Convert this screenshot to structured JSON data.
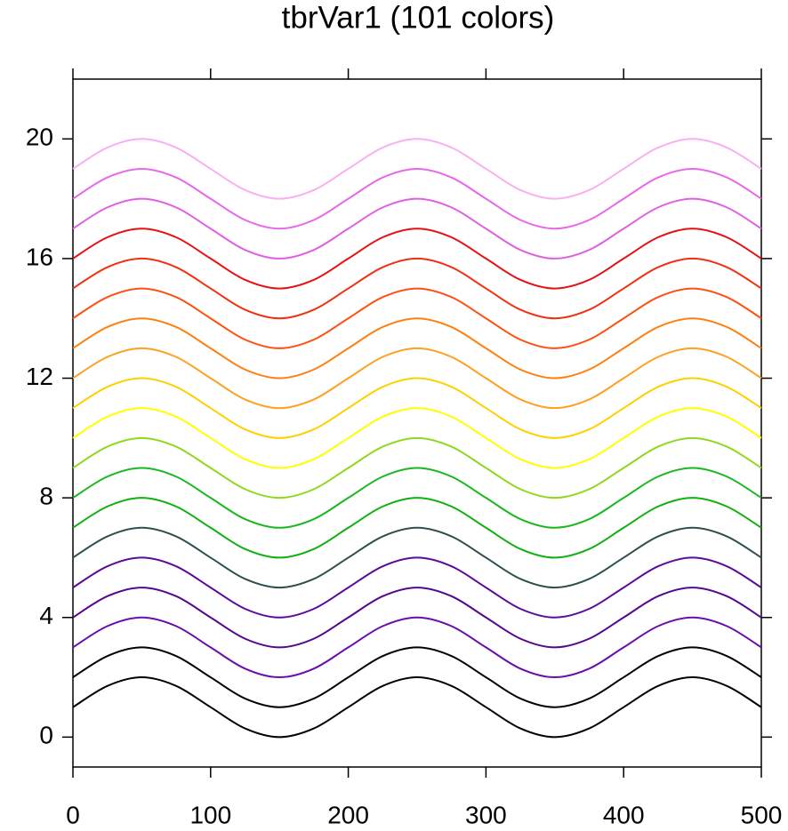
{
  "chart_data": {
    "type": "line",
    "title": "tbrVar1 (101 colors)",
    "x": [
      0,
      25,
      50,
      75,
      100,
      125,
      150,
      175,
      200,
      225,
      250,
      275,
      300,
      325,
      350,
      375,
      400,
      425,
      450,
      475,
      500
    ],
    "series": [
      {
        "color": "#000000",
        "values": [
          1,
          1.71,
          2,
          1.71,
          1,
          0.29,
          0,
          0.29,
          1,
          1.71,
          2,
          1.71,
          1,
          0.29,
          0,
          0.29,
          1,
          1.71,
          2,
          1.71,
          1
        ]
      },
      {
        "color": "#000000",
        "values": [
          2,
          2.71,
          3,
          2.71,
          2,
          1.29,
          1,
          1.29,
          2,
          2.71,
          3,
          2.71,
          2,
          1.29,
          1,
          1.29,
          2,
          2.71,
          3,
          2.71,
          2
        ]
      },
      {
        "color": "#6a0dad",
        "values": [
          3,
          3.71,
          4,
          3.71,
          3,
          2.29,
          2,
          2.29,
          3,
          3.71,
          4,
          3.71,
          3,
          2.29,
          2,
          2.29,
          3,
          3.71,
          4,
          3.71,
          3
        ]
      },
      {
        "color": "#55078f",
        "values": [
          4,
          4.71,
          5,
          4.71,
          4,
          3.29,
          3,
          3.29,
          4,
          4.71,
          5,
          4.71,
          4,
          3.29,
          3,
          3.29,
          4,
          4.71,
          5,
          4.71,
          4
        ]
      },
      {
        "color": "#5c0a9c",
        "values": [
          5,
          5.71,
          6,
          5.71,
          5,
          4.29,
          4,
          4.29,
          5,
          5.71,
          6,
          5.71,
          5,
          4.29,
          4,
          4.29,
          5,
          5.71,
          6,
          5.71,
          5
        ]
      },
      {
        "color": "#2f4f4f",
        "values": [
          6,
          6.71,
          7,
          6.71,
          6,
          5.29,
          5,
          5.29,
          6,
          6.71,
          7,
          6.71,
          6,
          5.29,
          5,
          5.29,
          6,
          6.71,
          7,
          6.71,
          6
        ]
      },
      {
        "color": "#10b010",
        "values": [
          7,
          7.71,
          8,
          7.71,
          7,
          6.29,
          6,
          6.29,
          7,
          7.71,
          8,
          7.71,
          7,
          6.29,
          6,
          6.29,
          7,
          7.71,
          8,
          7.71,
          7
        ]
      },
      {
        "color": "#1ab820",
        "values": [
          8,
          8.71,
          9,
          8.71,
          8,
          7.29,
          7,
          7.29,
          8,
          8.71,
          9,
          8.71,
          8,
          7.29,
          7,
          7.29,
          8,
          8.71,
          9,
          8.71,
          8
        ]
      },
      {
        "color": "#90d820",
        "values": [
          9,
          9.71,
          10,
          9.71,
          9,
          8.29,
          8,
          8.29,
          9,
          9.71,
          10,
          9.71,
          9,
          8.29,
          8,
          8.29,
          9,
          9.71,
          10,
          9.71,
          9
        ]
      },
      {
        "color": "#ffff00",
        "values": [
          10,
          10.71,
          11,
          10.71,
          10,
          9.29,
          9,
          9.29,
          10,
          10.71,
          11,
          10.71,
          10,
          9.29,
          9,
          9.29,
          10,
          10.71,
          11,
          10.71,
          10
        ]
      },
      {
        "color": "#ffd000",
        "values": [
          11,
          11.71,
          12,
          11.71,
          11,
          10.29,
          10,
          10.29,
          11,
          11.71,
          12,
          11.71,
          11,
          10.29,
          10,
          10.29,
          11,
          11.71,
          12,
          11.71,
          11
        ]
      },
      {
        "color": "#ffa020",
        "values": [
          12,
          12.71,
          13,
          12.71,
          12,
          11.29,
          11,
          11.29,
          12,
          12.71,
          13,
          12.71,
          12,
          11.29,
          11,
          11.29,
          12,
          12.71,
          13,
          12.71,
          12
        ]
      },
      {
        "color": "#ff8010",
        "values": [
          13,
          13.71,
          14,
          13.71,
          13,
          12.29,
          12,
          12.29,
          13,
          13.71,
          14,
          13.71,
          13,
          12.29,
          12,
          12.29,
          13,
          13.71,
          14,
          13.71,
          13
        ]
      },
      {
        "color": "#ff5010",
        "values": [
          14,
          14.71,
          15,
          14.71,
          14,
          13.29,
          13,
          13.29,
          14,
          14.71,
          15,
          14.71,
          14,
          13.29,
          13,
          13.29,
          14,
          14.71,
          15,
          14.71,
          14
        ]
      },
      {
        "color": "#f03010",
        "values": [
          15,
          15.71,
          16,
          15.71,
          15,
          14.29,
          14,
          14.29,
          15,
          15.71,
          16,
          15.71,
          15,
          14.29,
          14,
          14.29,
          15,
          15.71,
          16,
          15.71,
          15
        ]
      },
      {
        "color": "#e81010",
        "values": [
          16,
          16.71,
          17,
          16.71,
          16,
          15.29,
          15,
          15.29,
          16,
          16.71,
          17,
          16.71,
          16,
          15.29,
          15,
          15.29,
          16,
          16.71,
          17,
          16.71,
          16
        ]
      },
      {
        "color": "#e060e0",
        "values": [
          17,
          17.71,
          18,
          17.71,
          17,
          16.29,
          16,
          16.29,
          17,
          17.71,
          18,
          17.71,
          17,
          16.29,
          16,
          16.29,
          17,
          17.71,
          18,
          17.71,
          17
        ]
      },
      {
        "color": "#e868e8",
        "values": [
          18,
          18.71,
          19,
          18.71,
          18,
          17.29,
          17,
          17.29,
          18,
          18.71,
          19,
          18.71,
          18,
          17.29,
          17,
          17.29,
          18,
          18.71,
          19,
          18.71,
          18
        ]
      },
      {
        "color": "#f8b0f0",
        "values": [
          19,
          19.71,
          20,
          19.71,
          19,
          18.29,
          18,
          18.29,
          19,
          19.71,
          20,
          19.71,
          19,
          18.29,
          18,
          18.29,
          19,
          19.71,
          20,
          19.71,
          19
        ]
      }
    ],
    "xlim": [
      0,
      500
    ],
    "xticks": [
      0,
      100,
      200,
      300,
      400,
      500
    ],
    "ylim": [
      -1,
      22
    ],
    "yticks": [
      0,
      4,
      8,
      12,
      16,
      20
    ]
  }
}
